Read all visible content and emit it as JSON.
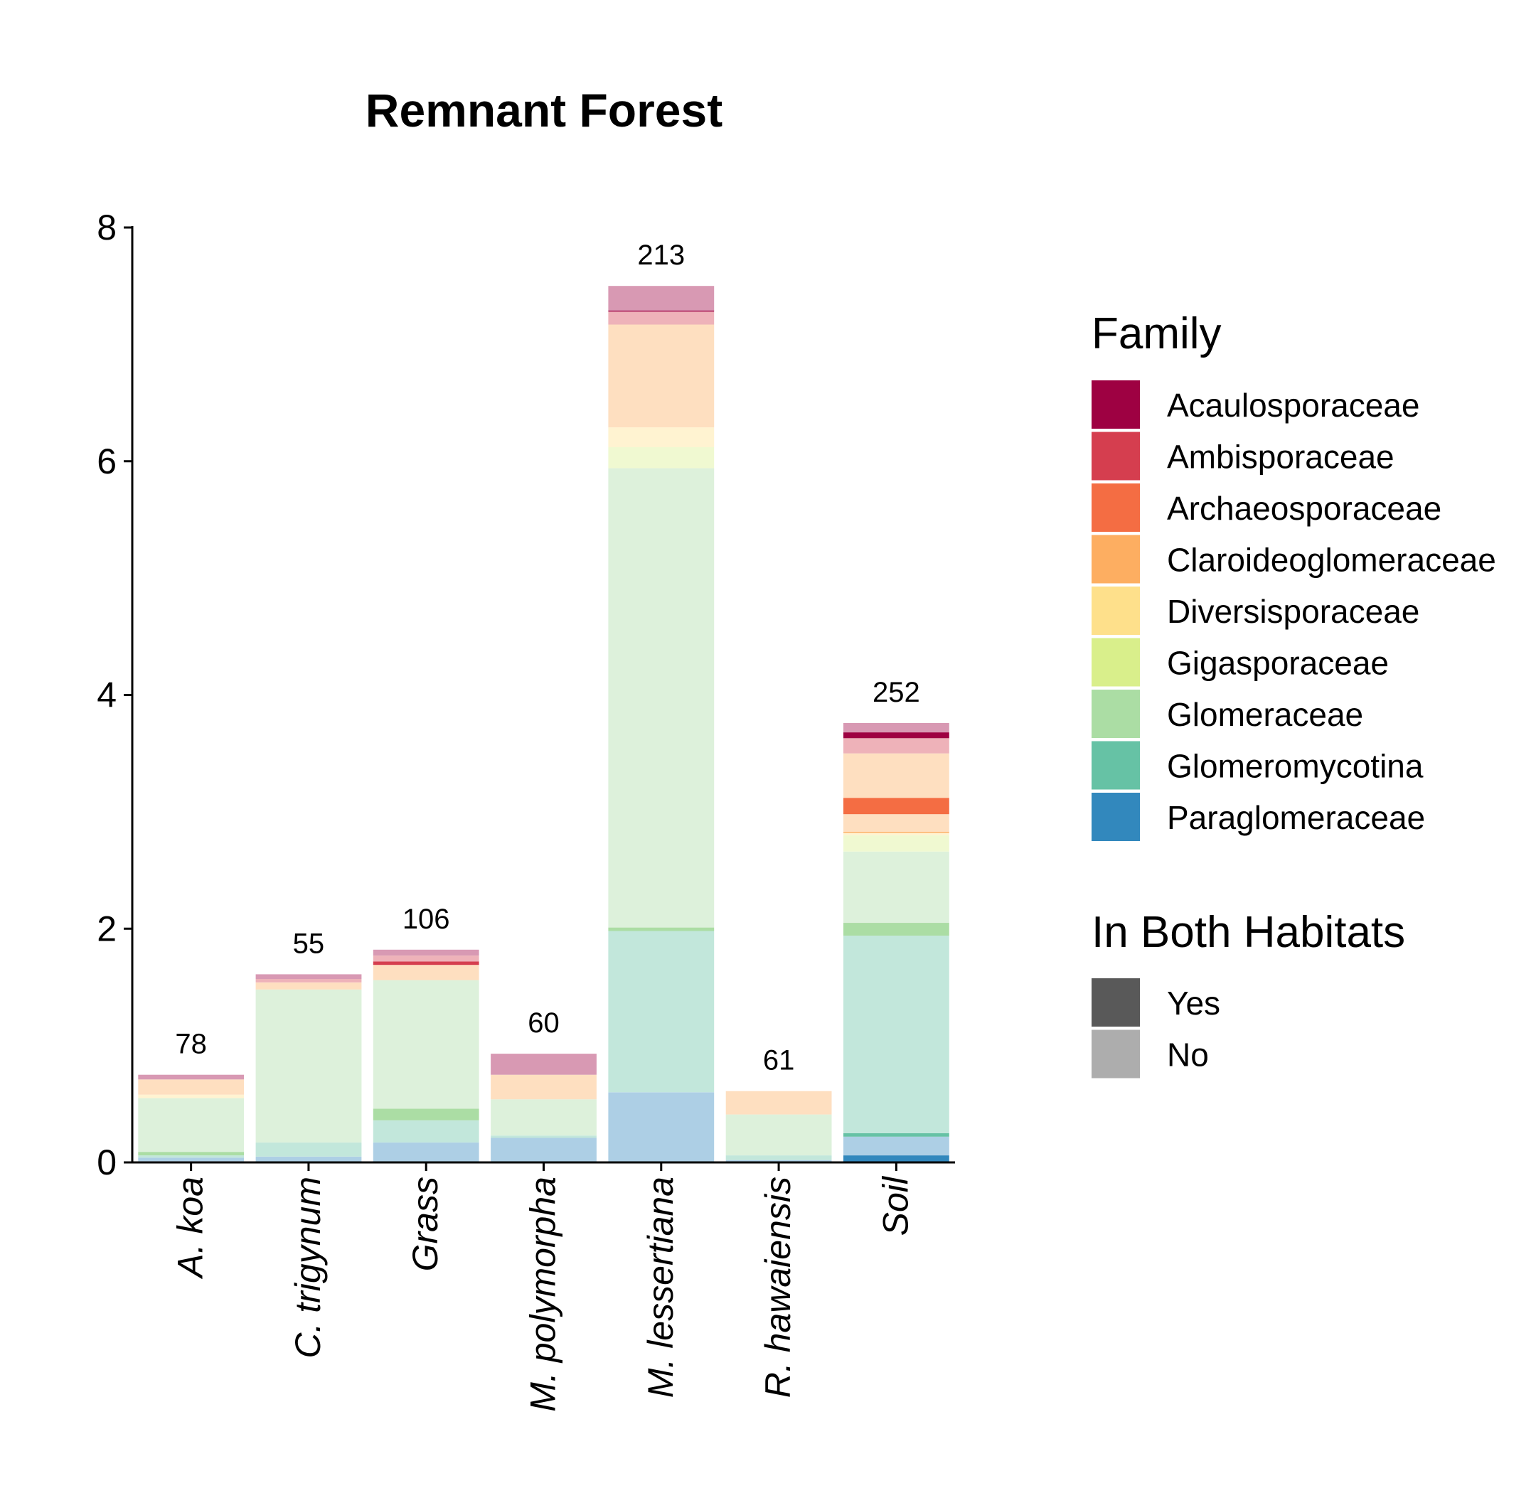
{
  "chart_data": {
    "type": "bar",
    "stacked": true,
    "title": "Remnant Forest",
    "xlabel": "",
    "ylabel": "",
    "ylim": [
      0,
      8
    ],
    "yticks": [
      "0",
      "2",
      "4",
      "6",
      "8"
    ],
    "grid": false,
    "legend_position": "right",
    "categories": [
      "A. koa",
      "C. trigynum",
      "Grass",
      "M. polymorpha",
      "M. lessertiana",
      "R. hawaiensis",
      "Soil"
    ],
    "totals_labels": [
      "78",
      "55",
      "106",
      "60",
      "213",
      "61",
      "252"
    ],
    "families": [
      {
        "name": "Acaulosporaceae",
        "color": "#9E0142"
      },
      {
        "name": "Ambisporaceae",
        "color": "#D53E4F"
      },
      {
        "name": "Archaeosporaceae",
        "color": "#F46D43"
      },
      {
        "name": "Claroideoglomeraceae",
        "color": "#FDAE61"
      },
      {
        "name": "Diversisporaceae",
        "color": "#FEE08B"
      },
      {
        "name": "Gigasporaceae",
        "color": "#D9EF8B"
      },
      {
        "name": "Glomeraceae",
        "color": "#ABDDA4"
      },
      {
        "name": "Glomeromycotina",
        "color": "#66C2A5"
      },
      {
        "name": "Paraglomeraceae",
        "color": "#3288BD"
      }
    ],
    "habitat_legend": [
      {
        "name": "Yes",
        "color": "#595959"
      },
      {
        "name": "No",
        "color": "#ADADAD"
      }
    ],
    "legend_titles": {
      "family": "Family",
      "habitat": "In Both Habitats"
    },
    "stacks": [
      [
        {
          "family": "Paraglomeraceae",
          "both": "Yes",
          "value": 0.01
        },
        {
          "family": "Paraglomeraceae",
          "both": "No",
          "value": 0.03
        },
        {
          "family": "Glomeromycotina",
          "both": "No",
          "value": 0.02
        },
        {
          "family": "Glomeraceae",
          "both": "Yes",
          "value": 0.03
        },
        {
          "family": "Glomeraceae",
          "both": "No",
          "value": 0.46
        },
        {
          "family": "Diversisporaceae",
          "both": "No",
          "value": 0.03
        },
        {
          "family": "Claroideoglomeraceae",
          "both": "No",
          "value": 0.13
        },
        {
          "family": "Acaulosporaceae",
          "both": "No",
          "value": 0.04
        }
      ],
      [
        {
          "family": "Paraglomeraceae",
          "both": "No",
          "value": 0.05
        },
        {
          "family": "Glomeromycotina",
          "both": "No",
          "value": 0.12
        },
        {
          "family": "Glomeraceae",
          "both": "No",
          "value": 1.31
        },
        {
          "family": "Claroideoglomeraceae",
          "both": "No",
          "value": 0.06
        },
        {
          "family": "Ambisporaceae",
          "both": "No",
          "value": 0.03
        },
        {
          "family": "Acaulosporaceae",
          "both": "No",
          "value": 0.04
        }
      ],
      [
        {
          "family": "Paraglomeraceae",
          "both": "No",
          "value": 0.17
        },
        {
          "family": "Glomeromycotina",
          "both": "No",
          "value": 0.19
        },
        {
          "family": "Glomeraceae",
          "both": "Yes",
          "value": 0.1
        },
        {
          "family": "Glomeraceae",
          "both": "No",
          "value": 1.1
        },
        {
          "family": "Claroideoglomeraceae",
          "both": "No",
          "value": 0.13
        },
        {
          "family": "Ambisporaceae",
          "both": "Yes",
          "value": 0.03
        },
        {
          "family": "Ambisporaceae",
          "both": "No",
          "value": 0.05
        },
        {
          "family": "Acaulosporaceae",
          "both": "No",
          "value": 0.05
        }
      ],
      [
        {
          "family": "Paraglomeraceae",
          "both": "No",
          "value": 0.21
        },
        {
          "family": "Glomeromycotina",
          "both": "No",
          "value": 0.02
        },
        {
          "family": "Glomeraceae",
          "both": "No",
          "value": 0.31
        },
        {
          "family": "Claroideoglomeraceae",
          "both": "No",
          "value": 0.21
        },
        {
          "family": "Acaulosporaceae",
          "both": "No",
          "value": 0.18
        }
      ],
      [
        {
          "family": "Paraglomeraceae",
          "both": "No",
          "value": 0.6
        },
        {
          "family": "Glomeromycotina",
          "both": "No",
          "value": 1.38
        },
        {
          "family": "Glomeraceae",
          "both": "Yes",
          "value": 0.03
        },
        {
          "family": "Glomeraceae",
          "both": "No",
          "value": 3.93
        },
        {
          "family": "Gigasporaceae",
          "both": "No",
          "value": 0.18
        },
        {
          "family": "Diversisporaceae",
          "both": "No",
          "value": 0.17
        },
        {
          "family": "Claroideoglomeraceae",
          "both": "No",
          "value": 0.88
        },
        {
          "family": "Ambisporaceae",
          "both": "No",
          "value": 0.11
        },
        {
          "family": "Acaulosporaceae",
          "both": "Yes",
          "value": 0.01
        },
        {
          "family": "Acaulosporaceae",
          "both": "No",
          "value": 0.21
        }
      ],
      [
        {
          "family": "Paraglomeraceae",
          "both": "No",
          "value": 0.02
        },
        {
          "family": "Glomeromycotina",
          "both": "No",
          "value": 0.04
        },
        {
          "family": "Glomeraceae",
          "both": "No",
          "value": 0.35
        },
        {
          "family": "Claroideoglomeraceae",
          "both": "No",
          "value": 0.2
        }
      ],
      [
        {
          "family": "Paraglomeraceae",
          "both": "Yes",
          "value": 0.06
        },
        {
          "family": "Paraglomeraceae",
          "both": "No",
          "value": 0.16
        },
        {
          "family": "Glomeromycotina",
          "both": "Yes",
          "value": 0.03
        },
        {
          "family": "Glomeromycotina",
          "both": "No",
          "value": 1.69
        },
        {
          "family": "Glomeraceae",
          "both": "Yes",
          "value": 0.11
        },
        {
          "family": "Glomeraceae",
          "both": "No",
          "value": 0.61
        },
        {
          "family": "Gigasporaceae",
          "both": "No",
          "value": 0.14
        },
        {
          "family": "Diversisporaceae",
          "both": "No",
          "value": 0.02
        },
        {
          "family": "Claroideoglomeraceae",
          "both": "Yes",
          "value": 0.01
        },
        {
          "family": "Claroideoglomeraceae",
          "both": "No",
          "value": 0.15
        },
        {
          "family": "Archaeosporaceae",
          "both": "Yes",
          "value": 0.14
        },
        {
          "family": "Claroideoglomeraceae",
          "both": "No",
          "value": 0.38
        },
        {
          "family": "Ambisporaceae",
          "both": "No",
          "value": 0.13
        },
        {
          "family": "Acaulosporaceae",
          "both": "Yes",
          "value": 0.05
        },
        {
          "family": "Acaulosporaceae",
          "both": "No",
          "value": 0.08
        }
      ]
    ]
  }
}
